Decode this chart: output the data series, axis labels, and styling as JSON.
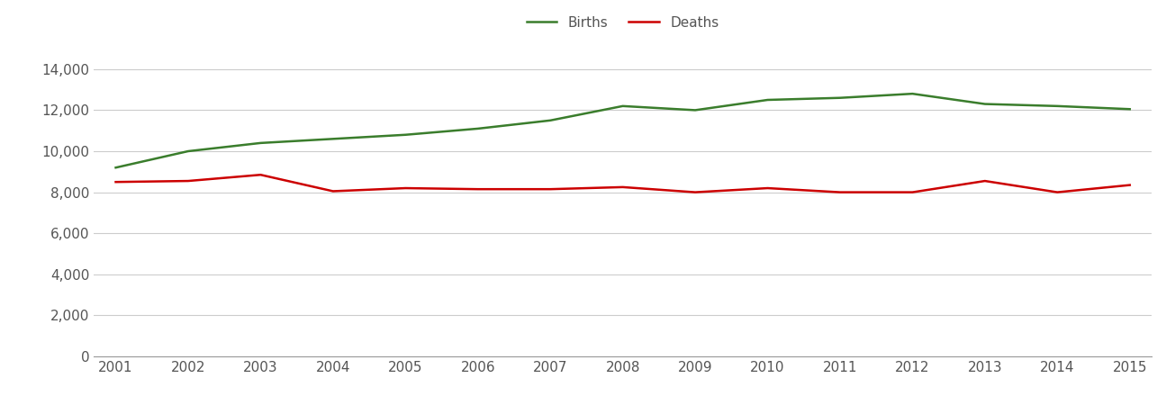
{
  "years": [
    2001,
    2002,
    2003,
    2004,
    2005,
    2006,
    2007,
    2008,
    2009,
    2010,
    2011,
    2012,
    2013,
    2014,
    2015
  ],
  "births": [
    9200,
    10000,
    10400,
    10600,
    10800,
    11100,
    11500,
    12200,
    12000,
    12500,
    12600,
    12800,
    12300,
    12200,
    12050
  ],
  "deaths": [
    8500,
    8550,
    8850,
    8050,
    8200,
    8150,
    8150,
    8250,
    8000,
    8200,
    8000,
    8000,
    8550,
    8000,
    8350
  ],
  "births_color": "#3a7d2c",
  "deaths_color": "#cc0000",
  "line_width": 1.8,
  "ylim": [
    0,
    15000
  ],
  "yticks": [
    0,
    2000,
    4000,
    6000,
    8000,
    10000,
    12000,
    14000
  ],
  "background_color": "#ffffff",
  "grid_color": "#cccccc",
  "legend_labels": [
    "Births",
    "Deaths"
  ],
  "tick_label_color": "#555555",
  "tick_label_size": 11,
  "axis_line_color": "#999999"
}
